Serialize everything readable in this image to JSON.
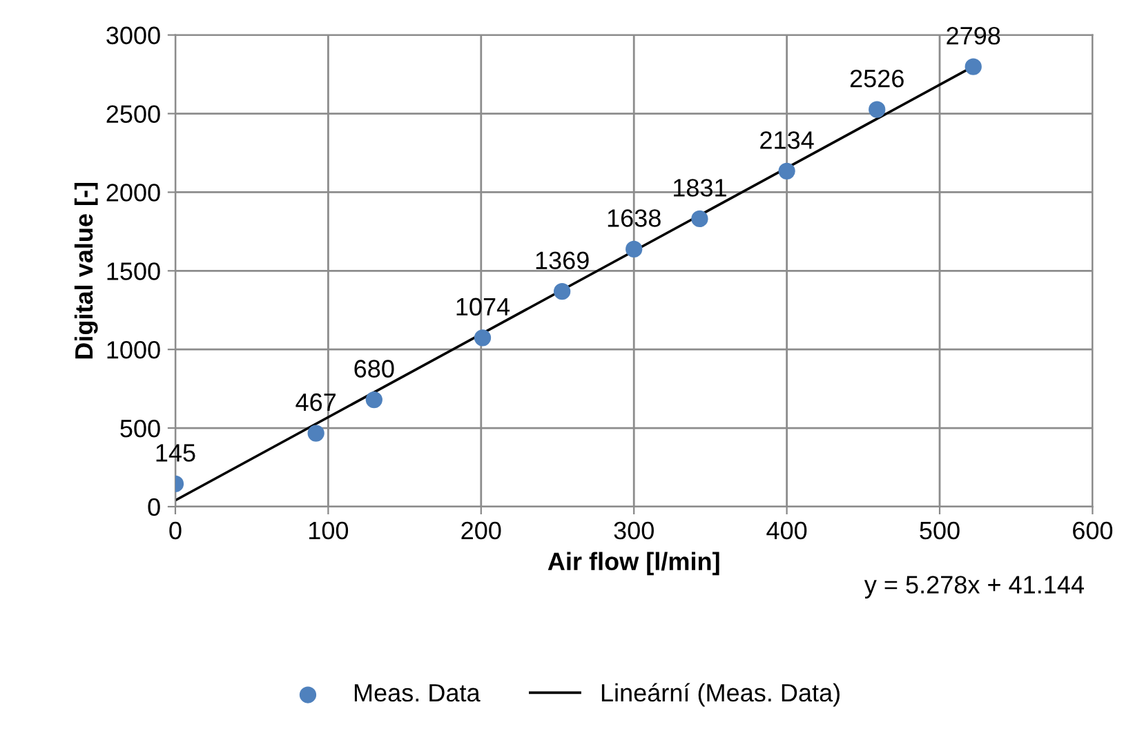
{
  "chart_data": {
    "type": "scatter",
    "xlabel": "Air flow [l/min]",
    "ylabel": "Digital value [-]",
    "series": [
      {
        "name": "Meas. Data",
        "color": "#4f81bd",
        "marker": "circle",
        "data_labels": true,
        "x": [
          0,
          92,
          130,
          201,
          253,
          300,
          343,
          400,
          459,
          522
        ],
        "values": [
          145,
          467,
          680,
          1074,
          1369,
          1638,
          1831,
          2134,
          2526,
          2798
        ]
      },
      {
        "name": "Lineární (Meas. Data)",
        "type": "line",
        "color": "#000000",
        "marker": "none",
        "line_style": "solid",
        "x": [
          0,
          522
        ],
        "values": [
          40,
          2800
        ]
      }
    ],
    "xlim": [
      0,
      600
    ],
    "xticks": [
      0,
      100,
      200,
      300,
      400,
      500,
      600
    ],
    "ylim": [
      0,
      3000
    ],
    "yticks": [
      0,
      500,
      1000,
      1500,
      2000,
      2500,
      3000
    ],
    "grid": true,
    "legend": "bottom",
    "annotations": [
      "y = 5.278x + 41.144"
    ]
  }
}
